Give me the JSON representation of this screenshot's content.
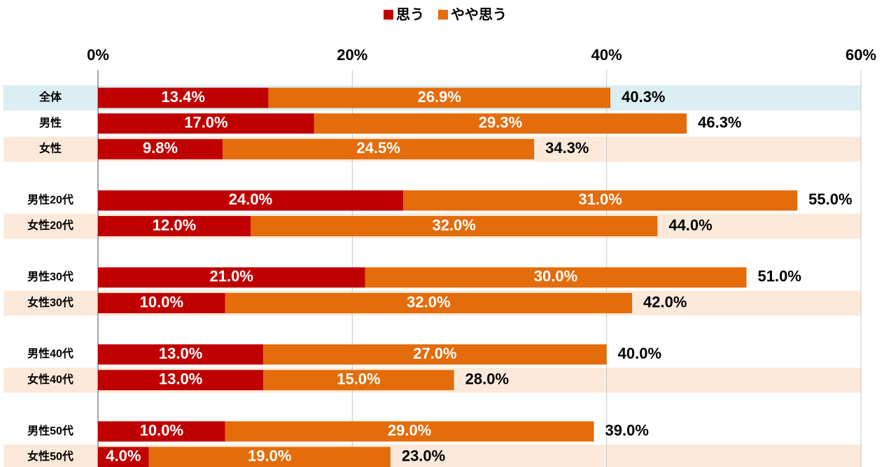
{
  "chart_data": {
    "type": "stacked-bar-horizontal",
    "categories": [
      "全体",
      "男性",
      "女性",
      null,
      "男性20代",
      "女性20代",
      null,
      "男性30代",
      "女性30代",
      null,
      "男性40代",
      "女性40代",
      null,
      "男性50代",
      "女性50代"
    ],
    "series": [
      {
        "name": "思う",
        "color": "#c00000",
        "values": [
          13.4,
          17.0,
          9.8,
          null,
          24.0,
          12.0,
          null,
          21.0,
          10.0,
          null,
          13.0,
          13.0,
          null,
          10.0,
          4.0
        ],
        "value_labels": [
          "13.4%",
          "17.0%",
          "9.8%",
          null,
          "24.0%",
          "12.0%",
          null,
          "21.0%",
          "10.0%",
          null,
          "13.0%",
          "13.0%",
          null,
          "10.0%",
          "4.0%"
        ]
      },
      {
        "name": "やや思う",
        "color": "#e46c0a",
        "values": [
          26.9,
          29.3,
          24.5,
          null,
          31.0,
          32.0,
          null,
          30.0,
          32.0,
          null,
          27.0,
          15.0,
          null,
          29.0,
          19.0
        ],
        "value_labels": [
          "26.9%",
          "29.3%",
          "24.5%",
          null,
          "31.0%",
          "32.0%",
          null,
          "30.0%",
          "32.0%",
          null,
          "27.0%",
          "15.0%",
          null,
          "29.0%",
          "19.0%"
        ]
      }
    ],
    "totals": [
      40.3,
      46.3,
      34.3,
      null,
      55.0,
      44.0,
      null,
      51.0,
      42.0,
      null,
      40.0,
      28.0,
      null,
      39.0,
      23.0
    ],
    "total_labels": [
      "40.3%",
      "46.3%",
      "34.3%",
      null,
      "55.0%",
      "44.0%",
      null,
      "51.0%",
      "42.0%",
      null,
      "40.0%",
      "28.0%",
      null,
      "39.0%",
      "23.0%"
    ],
    "row_colors": [
      "#daeef3",
      null,
      "#fde9d9",
      null,
      null,
      "#fde9d9",
      null,
      null,
      "#fde9d9",
      null,
      null,
      "#fde9d9",
      null,
      null,
      "#fde9d9"
    ],
    "xlim": [
      0,
      60
    ],
    "xticks": [
      {
        "value": 0,
        "label": "0%"
      },
      {
        "value": 20,
        "label": "20%"
      },
      {
        "value": 40,
        "label": "40%"
      },
      {
        "value": 60,
        "label": "60%"
      }
    ],
    "grid": true
  }
}
